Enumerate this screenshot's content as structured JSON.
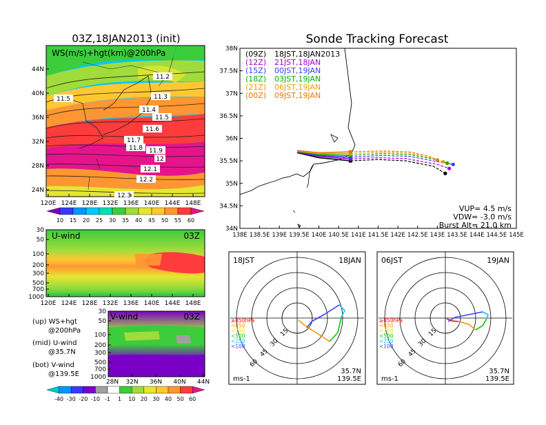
{
  "left": {
    "title": "03Z,18JAN2013 (init)",
    "upper": {
      "label": "WS(m/s)+hgt(km)@200hPa",
      "lat_ticks": [
        "44N",
        "40N",
        "36N",
        "32N",
        "28N",
        "24N"
      ],
      "lon_ticks": [
        "120E",
        "124E",
        "128E",
        "132E",
        "136E",
        "140E",
        "144E",
        "148E"
      ],
      "contour_labels": [
        "11.2",
        "11.3",
        "11.4",
        "11.5",
        "11.5",
        "11.6",
        "11.7",
        "11.8",
        "11.9",
        "12",
        "12.1",
        "12.2",
        "12.3"
      ],
      "colorbar_ticks": [
        "10",
        "15",
        "20",
        "25",
        "30",
        "35",
        "40",
        "45",
        "50",
        "55",
        "60"
      ],
      "colorbar_colors": [
        "#7a00c8",
        "#3838ff",
        "#0096ff",
        "#00c8ff",
        "#00e0b0",
        "#3ccc3c",
        "#a0dc3c",
        "#e6e632",
        "#ffc832",
        "#ff9632",
        "#ff3c3c",
        "#e6148c"
      ]
    },
    "middle": {
      "label": "U-wind",
      "time": "03Z",
      "p_ticks": [
        "30",
        "50",
        "100",
        "200",
        "300",
        "500",
        "700",
        "1000"
      ],
      "lon_ticks": [
        "120E",
        "124E",
        "128E",
        "132E",
        "136E",
        "140E",
        "144E",
        "148E"
      ]
    },
    "bottom": {
      "label": "V-wind",
      "time": "03Z",
      "p_ticks": [
        "30",
        "50",
        "100",
        "200",
        "300",
        "500",
        "700",
        "1000"
      ],
      "lat_ticks": [
        "28N",
        "32N",
        "36N",
        "40N",
        "44N"
      ],
      "colorbar_ticks": [
        "-40",
        "-30",
        "-20",
        "-10",
        "-1",
        "1",
        "10",
        "20",
        "30",
        "40",
        "50",
        "60"
      ],
      "colorbar_colors": [
        "#00c8c8",
        "#0096ff",
        "#3838ff",
        "#7a00c8",
        "#a0a0a0",
        "#ffffff",
        "#3ccc3c",
        "#a0dc3c",
        "#e6e632",
        "#ffc832",
        "#ff9632",
        "#ff3c3c",
        "#e6148c"
      ]
    },
    "legend": {
      "up1": "(up) WS+hgt",
      "up2": "@200hPa",
      "mid1": "(mid) U-wind",
      "mid2": "@35.7N",
      "bot1": "(bot) V-wind",
      "bot2": "@139.5E"
    }
  },
  "tracking": {
    "title": "Sonde Tracking Forecast",
    "lat_ticks": [
      "38N",
      "37.5N",
      "37N",
      "36.5N",
      "36N",
      "35.5N",
      "35N",
      "34.5N",
      "34N"
    ],
    "lon_ticks": [
      "138E",
      "138.5E",
      "139E",
      "139.5E",
      "140E",
      "140.5E",
      "141E",
      "141.5E",
      "142E",
      "142.5E",
      "143E",
      "143.5E",
      "144E",
      "144.5E",
      "145E"
    ],
    "launches": [
      {
        "code": "(09Z)",
        "label": "18JST,18JAN2013",
        "color": "#000000"
      },
      {
        "code": "(12Z)",
        "label": "21JST,18JAN",
        "color": "#a000c8"
      },
      {
        "code": "(15Z)",
        "label": "00JST,19JAN",
        "color": "#3c3cff"
      },
      {
        "code": "(18Z)",
        "label": "03JST,19JAN",
        "color": "#00b400"
      },
      {
        "code": "(21Z)",
        "label": "06JST,19JAN",
        "color": "#e6a000"
      },
      {
        "code": "(00Z)",
        "label": "09JST,19JAN",
        "color": "#e67800"
      }
    ],
    "vup": "VUP= 4.5 m/s",
    "vdw": "VDW= -3.0 m/s",
    "burst": "Burst Alt= 21.0 km"
  },
  "hodographs": [
    {
      "time": "18JST",
      "date": "18JAN",
      "lat": "35.7N",
      "lon": "139.5E",
      "unit": "ms-1",
      "ring_labels": [
        "15",
        "30",
        "45",
        "60"
      ],
      "levels": [
        {
          "label": "≥850hPa",
          "color": "#ff0000"
        },
        {
          "label": "<850",
          "color": "#ff9600"
        },
        {
          "label": "<700",
          "color": "#e6e600"
        },
        {
          "label": "<500",
          "color": "#00c800"
        },
        {
          "label": "<250",
          "color": "#00c8ff"
        },
        {
          "label": "<100",
          "color": "#3c3cff"
        }
      ]
    },
    {
      "time": "06JST",
      "date": "19JAN",
      "lat": "35.7N",
      "lon": "139.5E",
      "unit": "ms-1",
      "ring_labels": [
        "15",
        "30",
        "45",
        "60"
      ],
      "levels": [
        {
          "label": "≥850hPa",
          "color": "#ff0000"
        },
        {
          "label": "<850",
          "color": "#ff9600"
        },
        {
          "label": "<700",
          "color": "#e6e600"
        },
        {
          "label": "<500",
          "color": "#00c800"
        },
        {
          "label": "<250",
          "color": "#00c8ff"
        },
        {
          "label": "<100",
          "color": "#3c3cff"
        }
      ]
    }
  ],
  "chart_data": [
    {
      "type": "heatmap",
      "title": "03Z,18JAN2013 (init)",
      "subtitle": "WS(m/s)+hgt(km)@200hPa",
      "xlim": [
        120,
        150
      ],
      "ylim": [
        22,
        48
      ],
      "colorbar": [
        10,
        15,
        20,
        25,
        30,
        35,
        40,
        45,
        50,
        55,
        60
      ]
    },
    {
      "type": "heatmap",
      "title": "U-wind",
      "xlim": [
        120,
        150
      ],
      "ylim": [
        1000,
        30
      ]
    },
    {
      "type": "heatmap",
      "title": "V-wind",
      "xlim": [
        28,
        44
      ],
      "ylim": [
        1000,
        30
      ],
      "colorbar": [
        -40,
        -30,
        -20,
        -10,
        -1,
        1,
        10,
        20,
        30,
        40,
        50,
        60
      ]
    },
    {
      "type": "line",
      "title": "Sonde Tracking Forecast",
      "xlim": [
        138,
        145
      ],
      "ylim": [
        34,
        38
      ],
      "series": [
        {
          "name": "(09Z) 18JST,18JAN2013",
          "x": [
            139.45,
            140.0,
            140.8,
            141.5,
            142.2,
            142.9,
            143.2
          ],
          "y": [
            35.68,
            35.57,
            35.5,
            35.53,
            35.5,
            35.38,
            35.22
          ]
        },
        {
          "name": "(12Z) 21JST,18JAN",
          "x": [
            139.45,
            140.0,
            140.8,
            141.5,
            142.2,
            143.0,
            143.3
          ],
          "y": [
            35.69,
            35.6,
            35.54,
            35.57,
            35.55,
            35.42,
            35.33
          ]
        },
        {
          "name": "(15Z) 00JST,19JAN",
          "x": [
            139.45,
            140.0,
            140.8,
            141.6,
            142.3,
            143.0,
            143.4
          ],
          "y": [
            35.7,
            35.62,
            35.58,
            35.62,
            35.6,
            35.48,
            35.42
          ]
        },
        {
          "name": "(18Z) 03JST,19JAN",
          "x": [
            139.45,
            140.0,
            140.8,
            141.6,
            142.3,
            143.0,
            143.25
          ],
          "y": [
            35.71,
            35.64,
            35.62,
            35.66,
            35.64,
            35.52,
            35.45
          ]
        },
        {
          "name": "(21Z) 06JST,19JAN",
          "x": [
            139.45,
            140.0,
            140.8,
            141.6,
            142.3,
            142.9,
            143.15
          ],
          "y": [
            35.72,
            35.66,
            35.66,
            35.69,
            35.67,
            35.55,
            35.48
          ]
        },
        {
          "name": "(00Z) 09JST,19JAN",
          "x": [
            139.45,
            140.0,
            140.8,
            141.6,
            142.3,
            142.8,
            143.0
          ],
          "y": [
            35.73,
            35.68,
            35.7,
            35.72,
            35.7,
            35.6,
            35.52
          ]
        }
      ]
    }
  ]
}
